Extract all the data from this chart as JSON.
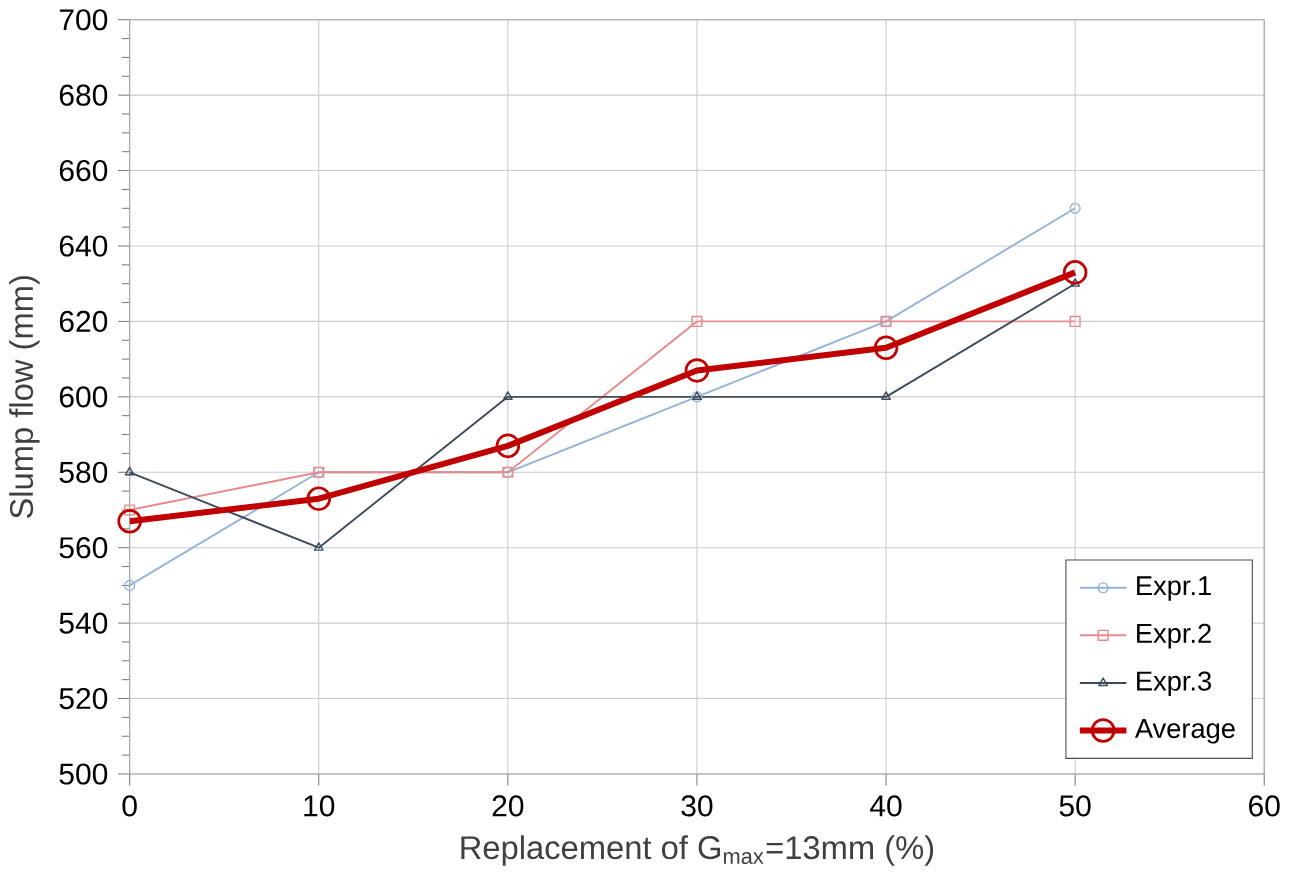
{
  "chart_data": {
    "type": "line",
    "xlabel": "Replacement of G$_{max}$=13mm (%)",
    "ylabel": "Slump flow (mm)",
    "x": [
      0,
      10,
      20,
      30,
      40,
      50
    ],
    "series": [
      {
        "name": "Expr.1",
        "color": "#95b3d7",
        "marker": "circle",
        "values": [
          550,
          580,
          580,
          600,
          620,
          650
        ]
      },
      {
        "name": "Expr.2",
        "color": "#e6898a",
        "marker": "square",
        "values": [
          570,
          580,
          580,
          620,
          620,
          620
        ]
      },
      {
        "name": "Expr.3",
        "color": "#3f4a5c",
        "marker": "triangle",
        "values": [
          580,
          560,
          600,
          600,
          600,
          630
        ]
      },
      {
        "name": "Average",
        "color": "#c00000",
        "marker": "circle",
        "values": [
          567,
          573,
          587,
          607,
          613,
          633
        ]
      }
    ],
    "xlim": [
      0,
      60
    ],
    "xticks": [
      0,
      10,
      20,
      30,
      40,
      50,
      60
    ],
    "ylim": [
      500,
      700
    ],
    "yticks": [
      500,
      520,
      540,
      560,
      580,
      600,
      620,
      640,
      660,
      680,
      700
    ],
    "grid": true,
    "legend": "bottom right",
    "line_style": "solid"
  }
}
